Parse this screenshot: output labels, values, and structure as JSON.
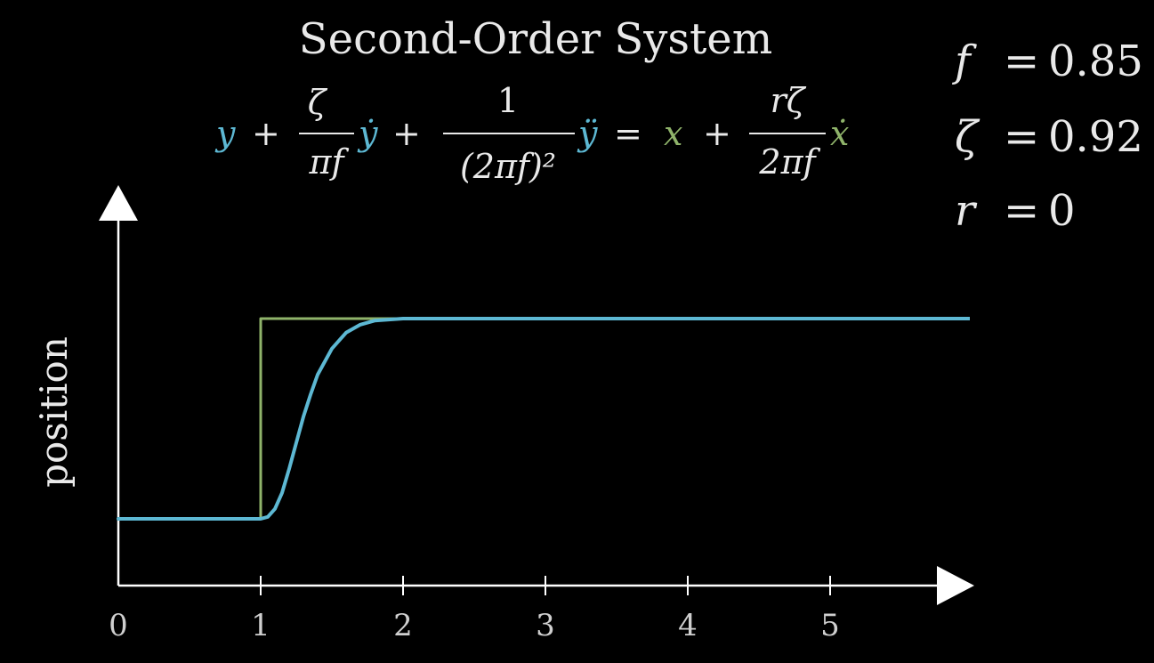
{
  "chart_data": {
    "type": "line",
    "title": "Second-Order System",
    "equation": {
      "lhs_y": "y",
      "plus": "+",
      "frac1_num": "ζ",
      "frac1_den": "πf",
      "ydot": "ẏ",
      "frac2_num": "1",
      "frac2_den": "(2πf)²",
      "yddot": "ÿ",
      "equals": "=",
      "rhs_x": "x",
      "frac3_num": "rζ",
      "frac3_den": "2πf",
      "xdot": "ẋ"
    },
    "params": [
      {
        "symbol": "f",
        "value": "0.85"
      },
      {
        "symbol": "ζ",
        "value": "0.92"
      },
      {
        "symbol": "r",
        "value": "0"
      }
    ],
    "ylabel": "position",
    "xlabel": "",
    "x_ticks": [
      "0",
      "1",
      "2",
      "3",
      "4",
      "5"
    ],
    "xlim": [
      0,
      5.85
    ],
    "ylim": [
      -0.33,
      1.45
    ],
    "grid": false,
    "series": [
      {
        "role": "input x (step)",
        "color": "#8fb36a",
        "x": [
          0,
          1,
          1,
          1.8,
          5.0
        ],
        "y": [
          0,
          0,
          1,
          1,
          1
        ]
      },
      {
        "role": "response y",
        "color": "#5db8d3",
        "x": [
          0,
          1.0,
          1.05,
          1.1,
          1.15,
          1.2,
          1.25,
          1.3,
          1.35,
          1.4,
          1.5,
          1.6,
          1.7,
          1.8,
          1.9,
          2.0,
          2.2,
          2.5,
          5.0
        ],
        "y": [
          0,
          0,
          0.01,
          0.05,
          0.13,
          0.25,
          0.38,
          0.51,
          0.62,
          0.72,
          0.85,
          0.93,
          0.97,
          0.99,
          0.995,
          1.0,
          1.0,
          1.0,
          1.0
        ]
      }
    ],
    "colors": {
      "background": "#000000",
      "axis": "#ffffff",
      "response": "#5db8d3",
      "input": "#8fb36a",
      "text": "#e9e9e9"
    }
  }
}
